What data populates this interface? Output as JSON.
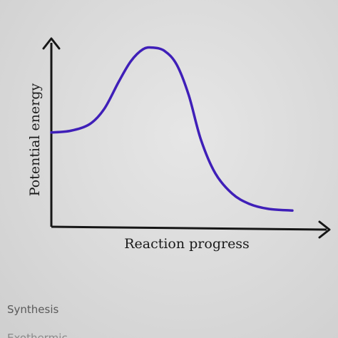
{
  "chart_data": {
    "type": "line",
    "title": "",
    "xlabel": "Reaction progress",
    "ylabel": "Potential energy",
    "grid": false,
    "legend": "none",
    "axis_ticks": false,
    "colors": {
      "curve": "#3f1fb8",
      "axis": "#161616",
      "label": "#1a1a1a"
    },
    "series": [
      {
        "values_description_free": true,
        "points": [
          {
            "x": 0.0,
            "y": 0.48
          },
          {
            "x": 0.08,
            "y": 0.49
          },
          {
            "x": 0.16,
            "y": 0.53
          },
          {
            "x": 0.22,
            "y": 0.62
          },
          {
            "x": 0.28,
            "y": 0.78
          },
          {
            "x": 0.33,
            "y": 0.9
          },
          {
            "x": 0.38,
            "y": 0.97
          },
          {
            "x": 0.42,
            "y": 0.98
          },
          {
            "x": 0.47,
            "y": 0.96
          },
          {
            "x": 0.52,
            "y": 0.88
          },
          {
            "x": 0.57,
            "y": 0.7
          },
          {
            "x": 0.62,
            "y": 0.44
          },
          {
            "x": 0.68,
            "y": 0.24
          },
          {
            "x": 0.75,
            "y": 0.12
          },
          {
            "x": 0.82,
            "y": 0.06
          },
          {
            "x": 0.9,
            "y": 0.03
          },
          {
            "x": 1.0,
            "y": 0.02
          }
        ]
      }
    ],
    "xlim": [
      0,
      1
    ],
    "ylim": [
      0,
      1
    ]
  },
  "page": {
    "caption": "Synthesis",
    "cut_text": "Exothermic"
  }
}
